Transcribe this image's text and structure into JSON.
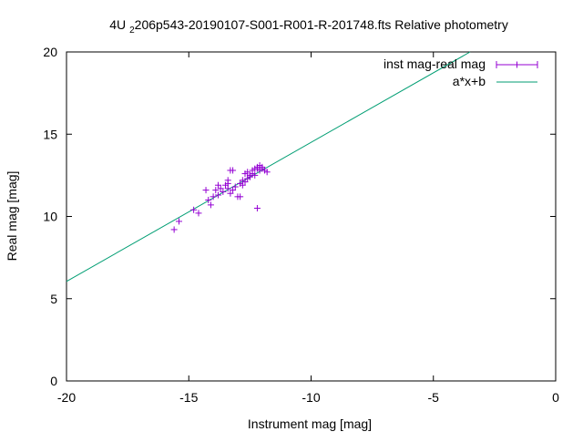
{
  "chart_data": {
    "type": "scatter",
    "title_prefix": "4U",
    "title_sub": "2",
    "title_rest": "206p543-20190107-S001-R001-R-201748.fts Relative photometry",
    "xlabel": "Instrument mag [mag]",
    "ylabel": "Real mag [mag]",
    "xlim": [
      -20,
      0
    ],
    "ylim": [
      0,
      20
    ],
    "xticks": [
      -20,
      -15,
      -10,
      -5,
      0
    ],
    "yticks": [
      0,
      5,
      10,
      15,
      20
    ],
    "grid": false,
    "legend_position": "top-right",
    "colors": {
      "points": "#9400d3",
      "fit": "#009e73"
    },
    "series": [
      {
        "name": "inst mag-real mag",
        "kind": "points",
        "x": [
          -15.6,
          -15.4,
          -14.8,
          -14.6,
          -14.3,
          -14.2,
          -14.1,
          -14.0,
          -13.9,
          -13.8,
          -13.8,
          -13.7,
          -13.6,
          -13.5,
          -13.4,
          -13.4,
          -13.3,
          -13.3,
          -13.2,
          -13.1,
          -13.0,
          -12.9,
          -12.9,
          -12.8,
          -12.8,
          -12.7,
          -12.6,
          -12.6,
          -12.5,
          -12.5,
          -12.4,
          -12.4,
          -12.3,
          -12.3,
          -12.2,
          -12.2,
          -12.1,
          -12.1,
          -12.0,
          -11.9,
          -11.8,
          -12.2,
          -13.4,
          -13.2,
          -12.7,
          -12.0
        ],
        "y": [
          9.2,
          9.7,
          10.4,
          10.2,
          11.6,
          11.0,
          10.7,
          11.2,
          11.6,
          11.9,
          11.3,
          11.7,
          11.5,
          11.9,
          12.2,
          12.0,
          12.8,
          11.4,
          11.6,
          11.8,
          11.2,
          12.0,
          11.2,
          12.2,
          11.9,
          12.6,
          12.3,
          12.7,
          12.5,
          12.4,
          12.6,
          12.8,
          12.9,
          12.5,
          12.9,
          13.0,
          12.8,
          13.1,
          13.0,
          12.8,
          12.7,
          10.5,
          11.7,
          12.8,
          12.1,
          12.9
        ]
      },
      {
        "name": "a*x+b",
        "kind": "line",
        "x": [
          -20,
          -3.5
        ],
        "y": [
          6.05,
          20.0
        ]
      }
    ]
  }
}
